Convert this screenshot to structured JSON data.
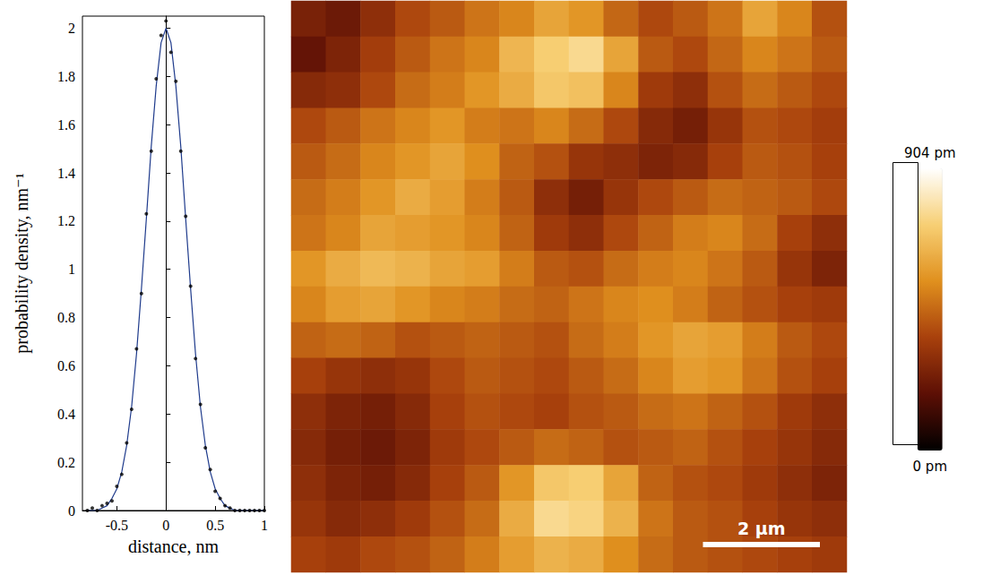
{
  "chart_data": [
    {
      "type": "line",
      "xlabel": "distance, nm",
      "ylabel": "probability density, nm⁻¹",
      "x": [
        -0.8,
        -0.75,
        -0.7,
        -0.65,
        -0.6,
        -0.55,
        -0.5,
        -0.45,
        -0.4,
        -0.35,
        -0.3,
        -0.25,
        -0.2,
        -0.15,
        -0.1,
        -0.05,
        0,
        0.05,
        0.1,
        0.15,
        0.2,
        0.25,
        0.3,
        0.35,
        0.4,
        0.45,
        0.5,
        0.55,
        0.6,
        0.65,
        0.7,
        0.75,
        0.8,
        0.85,
        0.9,
        0.95,
        1
      ],
      "series": [
        {
          "type": "scatter",
          "marker": "dot",
          "color": "#000000",
          "values": [
            0,
            0.01,
            0,
            0.02,
            0.03,
            0.04,
            0.1,
            0.15,
            0.28,
            0.42,
            0.67,
            0.9,
            1.23,
            1.49,
            1.79,
            1.97,
            2.03,
            1.9,
            1.78,
            1.49,
            1.22,
            0.93,
            0.63,
            0.44,
            0.26,
            0.17,
            0.08,
            0.05,
            0.02,
            0.01,
            0,
            0,
            0,
            0,
            0,
            0,
            0
          ]
        },
        {
          "type": "line",
          "line_style": "solid",
          "color": "#1f3b8c",
          "values": [
            0,
            0,
            0,
            0.01,
            0.02,
            0.05,
            0.09,
            0.16,
            0.27,
            0.43,
            0.65,
            0.92,
            1.21,
            1.51,
            1.76,
            1.94,
            2.0,
            1.94,
            1.76,
            1.51,
            1.21,
            0.92,
            0.65,
            0.43,
            0.27,
            0.16,
            0.09,
            0.05,
            0.02,
            0.01,
            0,
            0,
            0,
            0,
            0,
            0,
            0
          ]
        }
      ],
      "xlim": [
        -0.85,
        1
      ],
      "xticks": [
        -0.5,
        0,
        0.5,
        1
      ],
      "ylim": [
        0,
        2.05
      ],
      "yticks": [
        0,
        0.2,
        0.4,
        0.6,
        0.8,
        1,
        1.2,
        1.4,
        1.6,
        1.8,
        2
      ],
      "grid": false
    },
    {
      "type": "heatmap",
      "tick_labels": false,
      "colors": [
        "#000000",
        "#5c0f05",
        "#a8400c",
        "#e0901e",
        "#f7cf74",
        "#ffffff"
      ],
      "color_range": [
        0,
        904
      ],
      "colorbar_ticks": [
        {
          "value": 904,
          "label": "904 pm"
        },
        {
          "value": 0,
          "label": "0 pm"
        }
      ],
      "image_width_um": 9.5,
      "scale_bar": {
        "label": "2 µm",
        "length_um": 2
      },
      "values": [
        [
          250,
          220,
          300,
          380,
          420,
          480,
          520,
          600,
          560,
          450,
          380,
          420,
          480,
          600,
          520,
          400
        ],
        [
          200,
          260,
          350,
          420,
          480,
          520,
          650,
          720,
          760,
          600,
          420,
          380,
          450,
          520,
          480,
          420
        ],
        [
          280,
          300,
          380,
          460,
          500,
          560,
          620,
          700,
          680,
          520,
          340,
          300,
          400,
          460,
          420,
          380
        ],
        [
          380,
          420,
          480,
          520,
          560,
          500,
          480,
          520,
          460,
          380,
          280,
          240,
          320,
          400,
          380,
          350
        ],
        [
          420,
          460,
          520,
          560,
          600,
          540,
          440,
          400,
          320,
          300,
          260,
          280,
          360,
          420,
          400,
          360
        ],
        [
          460,
          500,
          560,
          620,
          580,
          500,
          420,
          300,
          240,
          320,
          380,
          420,
          460,
          440,
          420,
          380
        ],
        [
          480,
          520,
          600,
          580,
          560,
          520,
          440,
          340,
          300,
          380,
          440,
          500,
          520,
          460,
          360,
          300
        ],
        [
          560,
          620,
          660,
          640,
          600,
          580,
          500,
          420,
          400,
          460,
          500,
          520,
          480,
          420,
          320,
          260
        ],
        [
          520,
          580,
          600,
          560,
          520,
          500,
          460,
          440,
          480,
          520,
          540,
          500,
          440,
          400,
          360,
          340
        ],
        [
          440,
          460,
          440,
          400,
          420,
          440,
          420,
          400,
          460,
          500,
          560,
          600,
          580,
          500,
          420,
          380
        ],
        [
          360,
          320,
          300,
          320,
          380,
          420,
          400,
          380,
          420,
          460,
          520,
          580,
          560,
          480,
          400,
          360
        ],
        [
          300,
          260,
          240,
          280,
          360,
          400,
          380,
          360,
          400,
          420,
          460,
          480,
          440,
          400,
          340,
          300
        ],
        [
          280,
          240,
          220,
          260,
          340,
          380,
          420,
          460,
          440,
          400,
          420,
          440,
          400,
          360,
          320,
          280
        ],
        [
          300,
          260,
          240,
          280,
          360,
          420,
          560,
          700,
          720,
          600,
          440,
          400,
          380,
          340,
          300,
          260
        ],
        [
          320,
          280,
          300,
          340,
          400,
          460,
          620,
          760,
          740,
          640,
          480,
          420,
          400,
          360,
          320,
          300
        ],
        [
          360,
          340,
          380,
          400,
          440,
          500,
          580,
          640,
          620,
          540,
          460,
          420,
          400,
          380,
          360,
          340
        ]
      ]
    }
  ]
}
